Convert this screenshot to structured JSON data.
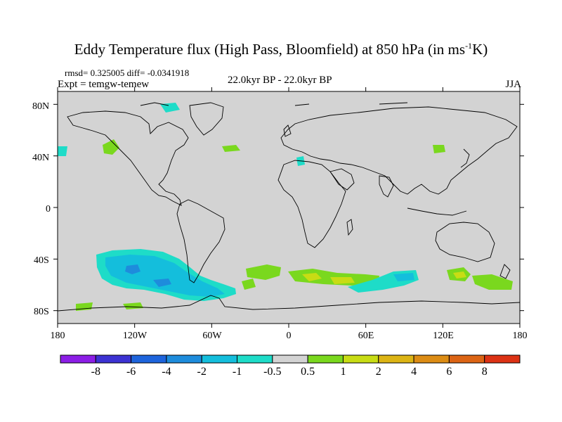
{
  "title": {
    "main": "Eddy Temperature flux (High Pass, Bloomfield) at 850 hPa (in ms",
    "sup": "-1",
    "unit_end": "K)"
  },
  "stats_line": "rmsd= 0.325005 diff= -0.0341918",
  "experiment": "Expt = temgw-temew",
  "period": "22.0kyr BP - 22.0kyr BP",
  "season": "JJA",
  "map": {
    "projection": "cylindrical-equidistant",
    "lon_range": [
      -180,
      180
    ],
    "lat_range": [
      -90,
      90
    ],
    "background_color": "#d3d3d3",
    "coastline_color": "#000000",
    "lat_ticks": [
      {
        "value": 80,
        "label": "80N"
      },
      {
        "value": 40,
        "label": "40N"
      },
      {
        "value": 0,
        "label": "0"
      },
      {
        "value": -40,
        "label": "40S"
      },
      {
        "value": -80,
        "label": "80S"
      }
    ],
    "lon_ticks": [
      {
        "value": -180,
        "label": "180"
      },
      {
        "value": -120,
        "label": "120W"
      },
      {
        "value": -60,
        "label": "60W"
      },
      {
        "value": 0,
        "label": "0"
      },
      {
        "value": 60,
        "label": "60E"
      },
      {
        "value": 120,
        "label": "120E"
      },
      {
        "value": 180,
        "label": "180"
      }
    ]
  },
  "colorbar": {
    "labels": [
      "-8",
      "-6",
      "-4",
      "-2",
      "-1",
      "-0.5",
      "0.5",
      "1",
      "2",
      "4",
      "6",
      "8"
    ],
    "colors": [
      "#8c1ee6",
      "#3c32d2",
      "#1e64dc",
      "#1e8cdc",
      "#14bedc",
      "#1edcc8",
      "#d3d3d3",
      "#7ad81e",
      "#c8dc14",
      "#dcb414",
      "#dc8c14",
      "#dc6414",
      "#dc3214"
    ]
  }
}
